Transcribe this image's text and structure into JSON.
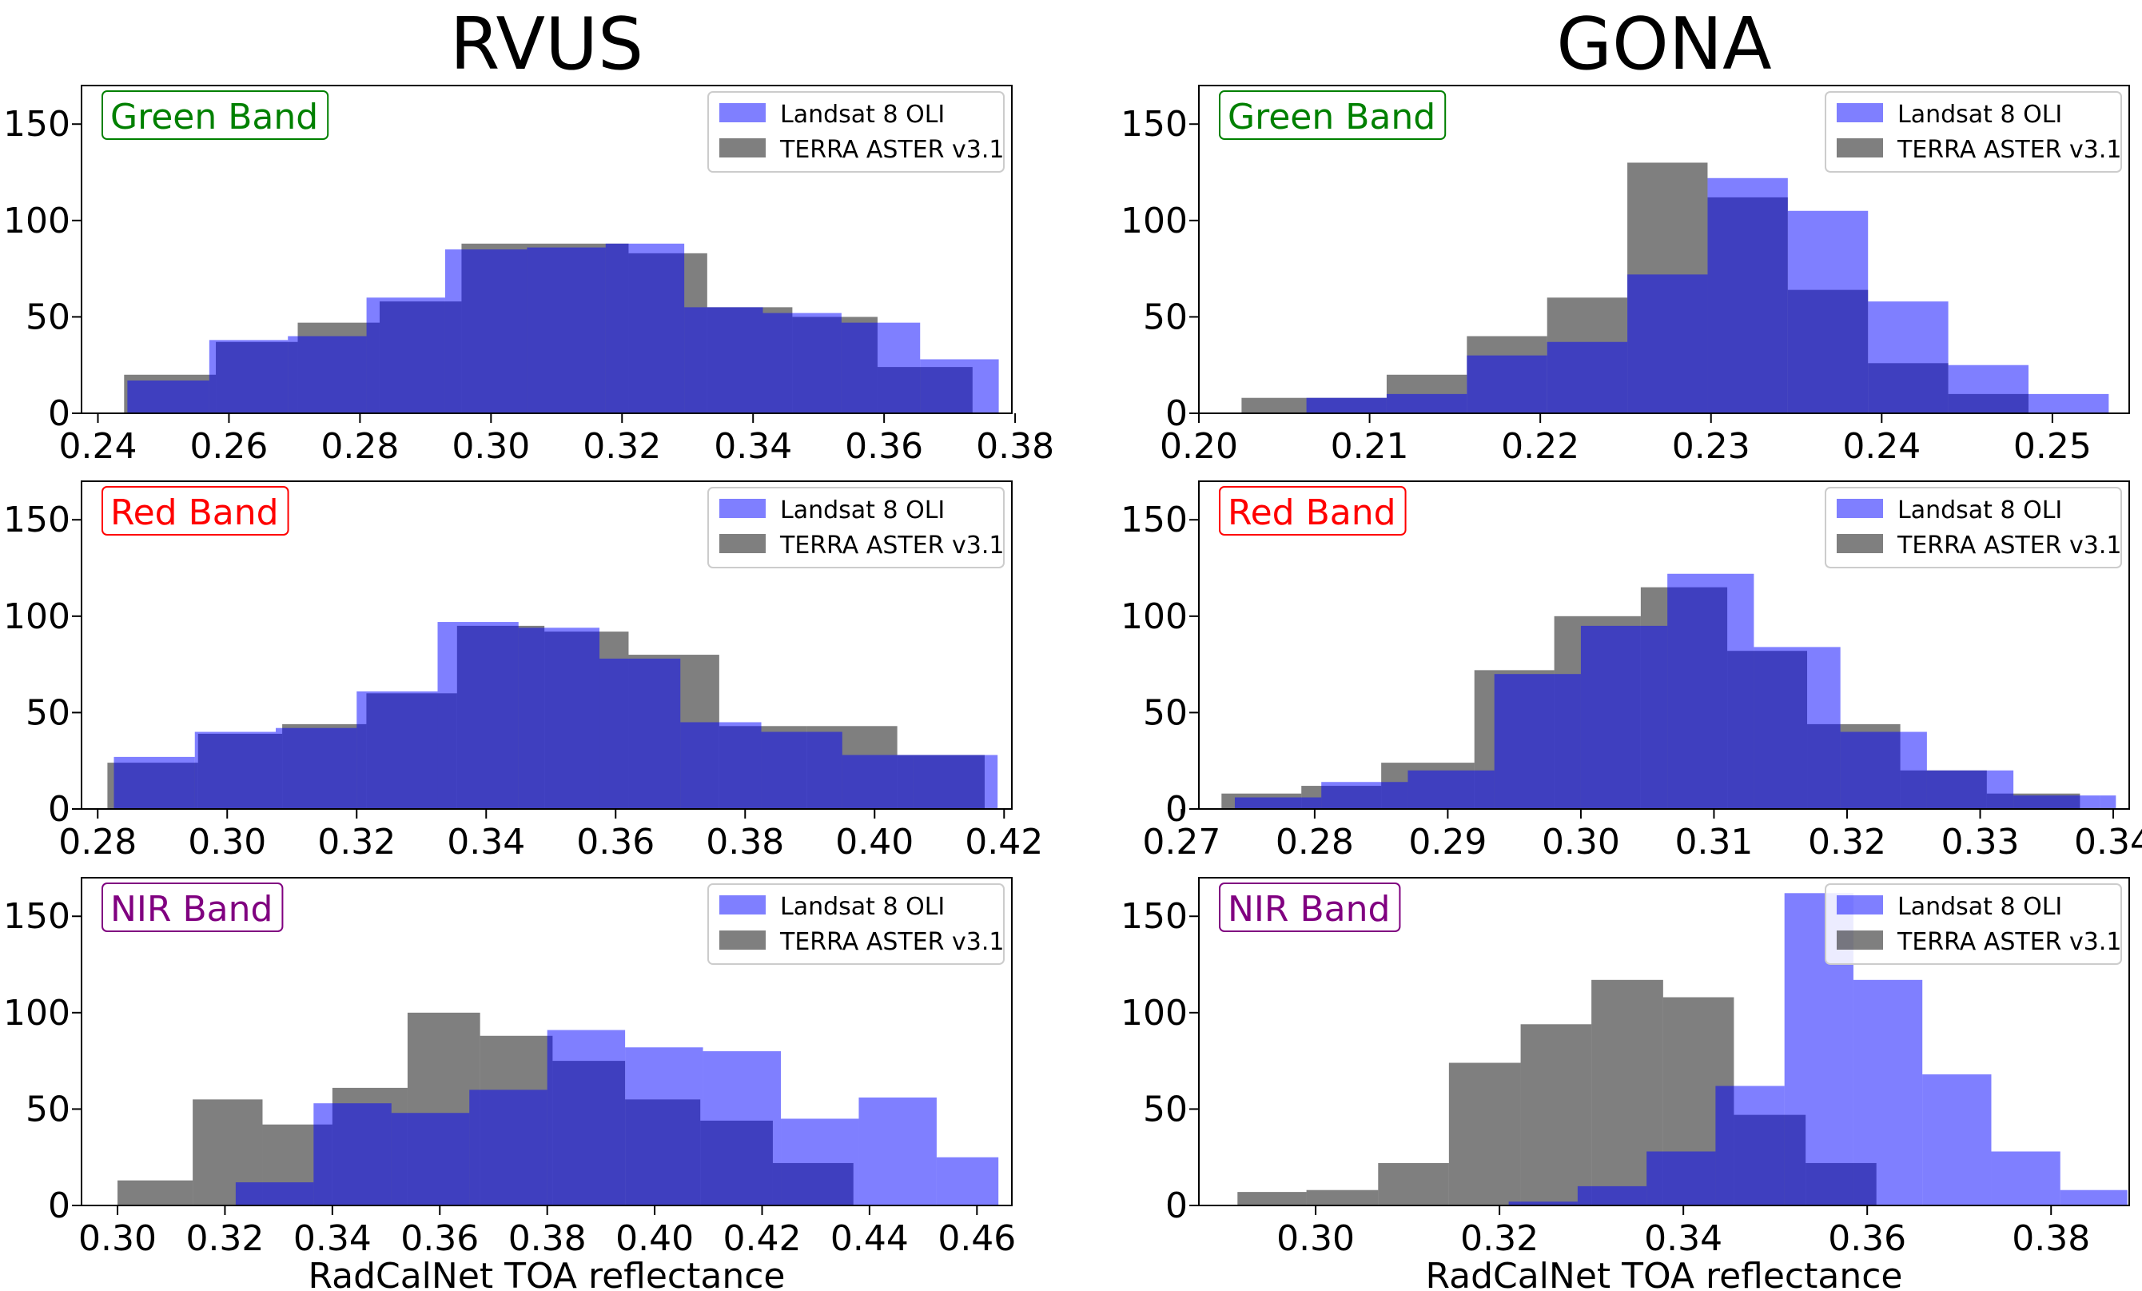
{
  "columns": [
    "RVUS",
    "GONA"
  ],
  "legend": [
    "Landsat 8 OLI",
    "TERRA ASTER v3.1"
  ],
  "colors": {
    "landsat": "#0000ff",
    "aster": "#000000",
    "overlap": "#3d3b7b",
    "green": "#008000",
    "red": "#ff0000",
    "nir": "#800080"
  },
  "chart_data": [
    {
      "type": "histogram",
      "site": "RVUS",
      "label": "Green Band",
      "label_color": "#008000",
      "xlabel": "",
      "xlim": [
        0.2375,
        0.3795
      ],
      "ylim": [
        0,
        170
      ],
      "xticks": [
        "0.24",
        "0.26",
        "0.28",
        "0.30",
        "0.32",
        "0.34",
        "0.36",
        "0.38"
      ],
      "yticks": [
        "0",
        "50",
        "100",
        "150"
      ],
      "series": [
        {
          "name": "Landsat 8 OLI",
          "edges": [
            0.2445,
            0.257,
            0.269,
            0.281,
            0.293,
            0.3055,
            0.3175,
            0.3295,
            0.3415,
            0.3535,
            0.3655,
            0.3775
          ],
          "counts": [
            17,
            38,
            40,
            60,
            85,
            86,
            88,
            55,
            52,
            47,
            28
          ]
        },
        {
          "name": "TERRA ASTER v3.1",
          "edges": [
            0.244,
            0.258,
            0.2705,
            0.283,
            0.2955,
            0.3085,
            0.321,
            0.333,
            0.346,
            0.359,
            0.3735
          ],
          "counts": [
            20,
            37,
            47,
            58,
            88,
            88,
            83,
            55,
            50,
            24
          ]
        }
      ]
    },
    {
      "type": "histogram",
      "site": "GONA",
      "label": "Green Band",
      "label_color": "#008000",
      "xlabel": "",
      "xlim": [
        0.2,
        0.2545
      ],
      "ylim": [
        0,
        170
      ],
      "xticks": [
        "0.20",
        "0.21",
        "0.22",
        "0.23",
        "0.24",
        "0.25"
      ],
      "yticks": [
        "0",
        "50",
        "100",
        "150"
      ],
      "series": [
        {
          "name": "Landsat 8 OLI",
          "edges": [
            0.2063,
            0.211,
            0.2157,
            0.2204,
            0.2251,
            0.2298,
            0.2345,
            0.2392,
            0.2439,
            0.2486,
            0.2533
          ],
          "counts": [
            8,
            10,
            30,
            37,
            72,
            122,
            105,
            58,
            25,
            10
          ]
        },
        {
          "name": "TERRA ASTER v3.1",
          "edges": [
            0.2025,
            0.2063,
            0.211,
            0.2157,
            0.2204,
            0.2251,
            0.2298,
            0.2345,
            0.2392,
            0.2439,
            0.2486
          ],
          "counts": [
            8,
            8,
            20,
            40,
            60,
            130,
            112,
            64,
            26,
            10
          ]
        }
      ]
    },
    {
      "type": "histogram",
      "site": "RVUS",
      "label": "Red Band",
      "label_color": "#ff0000",
      "xlabel": "",
      "xlim": [
        0.2775,
        0.4212
      ],
      "ylim": [
        0,
        170
      ],
      "xticks": [
        "0.28",
        "0.30",
        "0.32",
        "0.34",
        "0.36",
        "0.38",
        "0.40",
        "0.42"
      ],
      "yticks": [
        "0",
        "50",
        "100",
        "150"
      ],
      "series": [
        {
          "name": "Landsat 8 OLI",
          "edges": [
            0.2825,
            0.295,
            0.3075,
            0.32,
            0.3325,
            0.345,
            0.3575,
            0.37,
            0.3825,
            0.395,
            0.406,
            0.419
          ],
          "counts": [
            27,
            40,
            42,
            61,
            97,
            94,
            78,
            45,
            40,
            28,
            28
          ]
        },
        {
          "name": "TERRA ASTER v3.1",
          "edges": [
            0.2815,
            0.2955,
            0.3085,
            0.3215,
            0.3355,
            0.349,
            0.362,
            0.376,
            0.3895,
            0.4035,
            0.417
          ],
          "counts": [
            24,
            39,
            44,
            60,
            95,
            92,
            80,
            43,
            43,
            28
          ]
        }
      ]
    },
    {
      "type": "histogram",
      "site": "GONA",
      "label": "Red Band",
      "label_color": "#ff0000",
      "xlabel": "",
      "xlim": [
        0.2713,
        0.3412
      ],
      "ylim": [
        0,
        170
      ],
      "xticks": [
        "0.27",
        "0.28",
        "0.29",
        "0.30",
        "0.31",
        "0.32",
        "0.33",
        "0.34"
      ],
      "yticks": [
        "0",
        "50",
        "100",
        "150"
      ],
      "series": [
        {
          "name": "Landsat 8 OLI",
          "edges": [
            0.274,
            0.2805,
            0.287,
            0.2935,
            0.3,
            0.3065,
            0.313,
            0.3195,
            0.326,
            0.3325,
            0.339,
            0.3402
          ],
          "counts": [
            6,
            14,
            20,
            70,
            95,
            122,
            84,
            40,
            20,
            7,
            7
          ]
        },
        {
          "name": "TERRA ASTER v3.1",
          "edges": [
            0.273,
            0.279,
            0.285,
            0.292,
            0.298,
            0.3045,
            0.311,
            0.317,
            0.324,
            0.3305,
            0.3375
          ],
          "counts": [
            8,
            12,
            24,
            72,
            100,
            115,
            82,
            44,
            20,
            8
          ]
        }
      ]
    },
    {
      "type": "histogram",
      "site": "RVUS",
      "label": "NIR Band",
      "label_color": "#800080",
      "xlabel": "RadCalNet TOA reflectance",
      "xlim": [
        0.2933,
        0.4665
      ],
      "ylim": [
        0,
        170
      ],
      "xticks": [
        "0.30",
        "0.32",
        "0.34",
        "0.36",
        "0.38",
        "0.40",
        "0.42",
        "0.44",
        "0.46"
      ],
      "yticks": [
        "0",
        "50",
        "100",
        "150"
      ],
      "series": [
        {
          "name": "Landsat 8 OLI",
          "edges": [
            0.322,
            0.3365,
            0.351,
            0.3655,
            0.38,
            0.3945,
            0.409,
            0.4235,
            0.438,
            0.4525,
            0.464
          ],
          "counts": [
            12,
            53,
            48,
            60,
            91,
            82,
            80,
            45,
            56,
            25
          ]
        },
        {
          "name": "TERRA ASTER v3.1",
          "edges": [
            0.3,
            0.314,
            0.327,
            0.34,
            0.354,
            0.3675,
            0.381,
            0.3945,
            0.4085,
            0.422,
            0.437
          ],
          "counts": [
            13,
            55,
            42,
            61,
            100,
            88,
            75,
            55,
            44,
            22
          ]
        }
      ]
    },
    {
      "type": "histogram",
      "site": "GONA",
      "label": "NIR Band",
      "label_color": "#800080",
      "xlabel": "RadCalNet TOA reflectance",
      "xlim": [
        0.2873,
        0.3885
      ],
      "ylim": [
        0,
        170
      ],
      "xticks": [
        "0.30",
        "0.32",
        "0.34",
        "0.36",
        "0.38"
      ],
      "yticks": [
        "0",
        "50",
        "100",
        "150"
      ],
      "series": [
        {
          "name": "Landsat 8 OLI",
          "edges": [
            0.321,
            0.3285,
            0.336,
            0.3435,
            0.351,
            0.3585,
            0.366,
            0.3735,
            0.381,
            0.3883
          ],
          "counts": [
            2,
            10,
            28,
            62,
            162,
            117,
            68,
            28,
            8
          ]
        },
        {
          "name": "TERRA ASTER v3.1",
          "edges": [
            0.2915,
            0.299,
            0.3068,
            0.3145,
            0.3223,
            0.33,
            0.3378,
            0.3455,
            0.3533,
            0.361
          ],
          "counts": [
            7,
            8,
            22,
            74,
            94,
            117,
            108,
            47,
            22
          ]
        }
      ]
    }
  ]
}
